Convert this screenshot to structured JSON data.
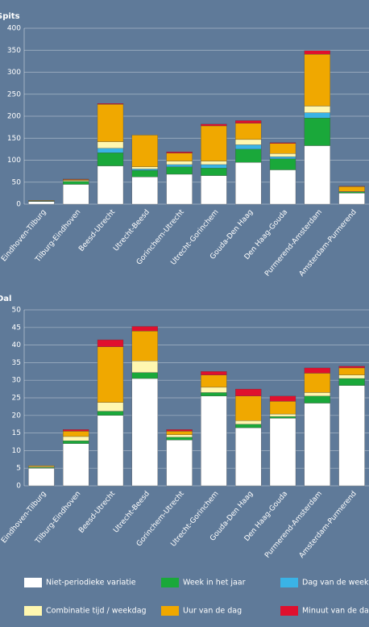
{
  "chart_data": [
    {
      "type": "stacked-bar",
      "title": "Spits",
      "categories": [
        "Eindhoven-Tilburg",
        "Tilburg-Eindhoven",
        "Beesd-Utrecht",
        "Utrecht-Beesd",
        "Gorinchem-Utrecht",
        "Utrecht-Gorinchem",
        "Gouda-Den Haag",
        "Den Haag-Gouda",
        "Purmerend-Amsterdam",
        "Amsterdam-Purmerend"
      ],
      "ylim": [
        0,
        400
      ],
      "yticks": [
        0,
        50,
        100,
        150,
        200,
        250,
        300,
        350,
        400
      ],
      "grid": true,
      "series": [
        {
          "name": "Niet-periodieke variatie",
          "color": "#ffffff",
          "values": [
            6,
            45,
            87,
            62,
            68,
            65,
            95,
            78,
            133,
            25
          ]
        },
        {
          "name": "Week in het jaar",
          "color": "#1aa83a",
          "values": [
            1,
            7,
            30,
            15,
            17,
            17,
            30,
            25,
            63,
            3
          ]
        },
        {
          "name": "Dag van de week",
          "color": "#3ab3e6",
          "values": [
            0,
            0,
            10,
            3,
            5,
            8,
            10,
            5,
            12,
            0
          ]
        },
        {
          "name": "Combinatie tijd / weekdag",
          "color": "#fff7b0",
          "values": [
            0.5,
            2,
            15,
            5,
            8,
            8,
            12,
            7,
            15,
            1
          ]
        },
        {
          "name": "Uur van de dag",
          "color": "#f0a800",
          "values": [
            1,
            2,
            85,
            72,
            18,
            80,
            37,
            23,
            118,
            11
          ]
        },
        {
          "name": "Minuut van de dag",
          "color": "#e0102e",
          "values": [
            0,
            1,
            2,
            0,
            3,
            4,
            6,
            2,
            8,
            1
          ]
        }
      ]
    },
    {
      "type": "stacked-bar",
      "title": "Dal",
      "categories": [
        "Eindhoven-Tilburg",
        "Tilburg-Eindhoven",
        "Beesd-Utrecht",
        "Utrecht-Beesd",
        "Gorinchem-Utrecht",
        "Utrecht-Gorinchem",
        "Gouda-Den Haag",
        "Den Haag-Gouda",
        "Purmerend-Amsterdam",
        "Amsterdam-Purmerend"
      ],
      "ylim": [
        0,
        50
      ],
      "yticks": [
        0,
        5,
        10,
        15,
        20,
        25,
        30,
        35,
        40,
        45,
        50
      ],
      "grid": true,
      "series": [
        {
          "values": [
            5,
            12,
            20,
            30.5,
            13,
            25.5,
            16.5,
            19.2,
            23.5,
            28.5
          ]
        },
        {
          "values": [
            0.2,
            0.8,
            1.2,
            1.7,
            0.8,
            1,
            1,
            0.5,
            2,
            2
          ]
        },
        {
          "values": [
            0,
            0,
            0,
            0,
            0,
            0,
            0,
            0,
            0,
            0
          ]
        },
        {
          "values": [
            0.2,
            1.2,
            2.5,
            3.3,
            0.7,
            1.5,
            1,
            0.7,
            1,
            1
          ]
        },
        {
          "values": [
            0.3,
            1.5,
            15.8,
            8.5,
            1,
            3.5,
            7,
            3.6,
            5.5,
            2
          ]
        },
        {
          "values": [
            0,
            0.5,
            2,
            1.3,
            0.5,
            1,
            2,
            1.5,
            1.5,
            0.5
          ]
        }
      ]
    }
  ]
}
